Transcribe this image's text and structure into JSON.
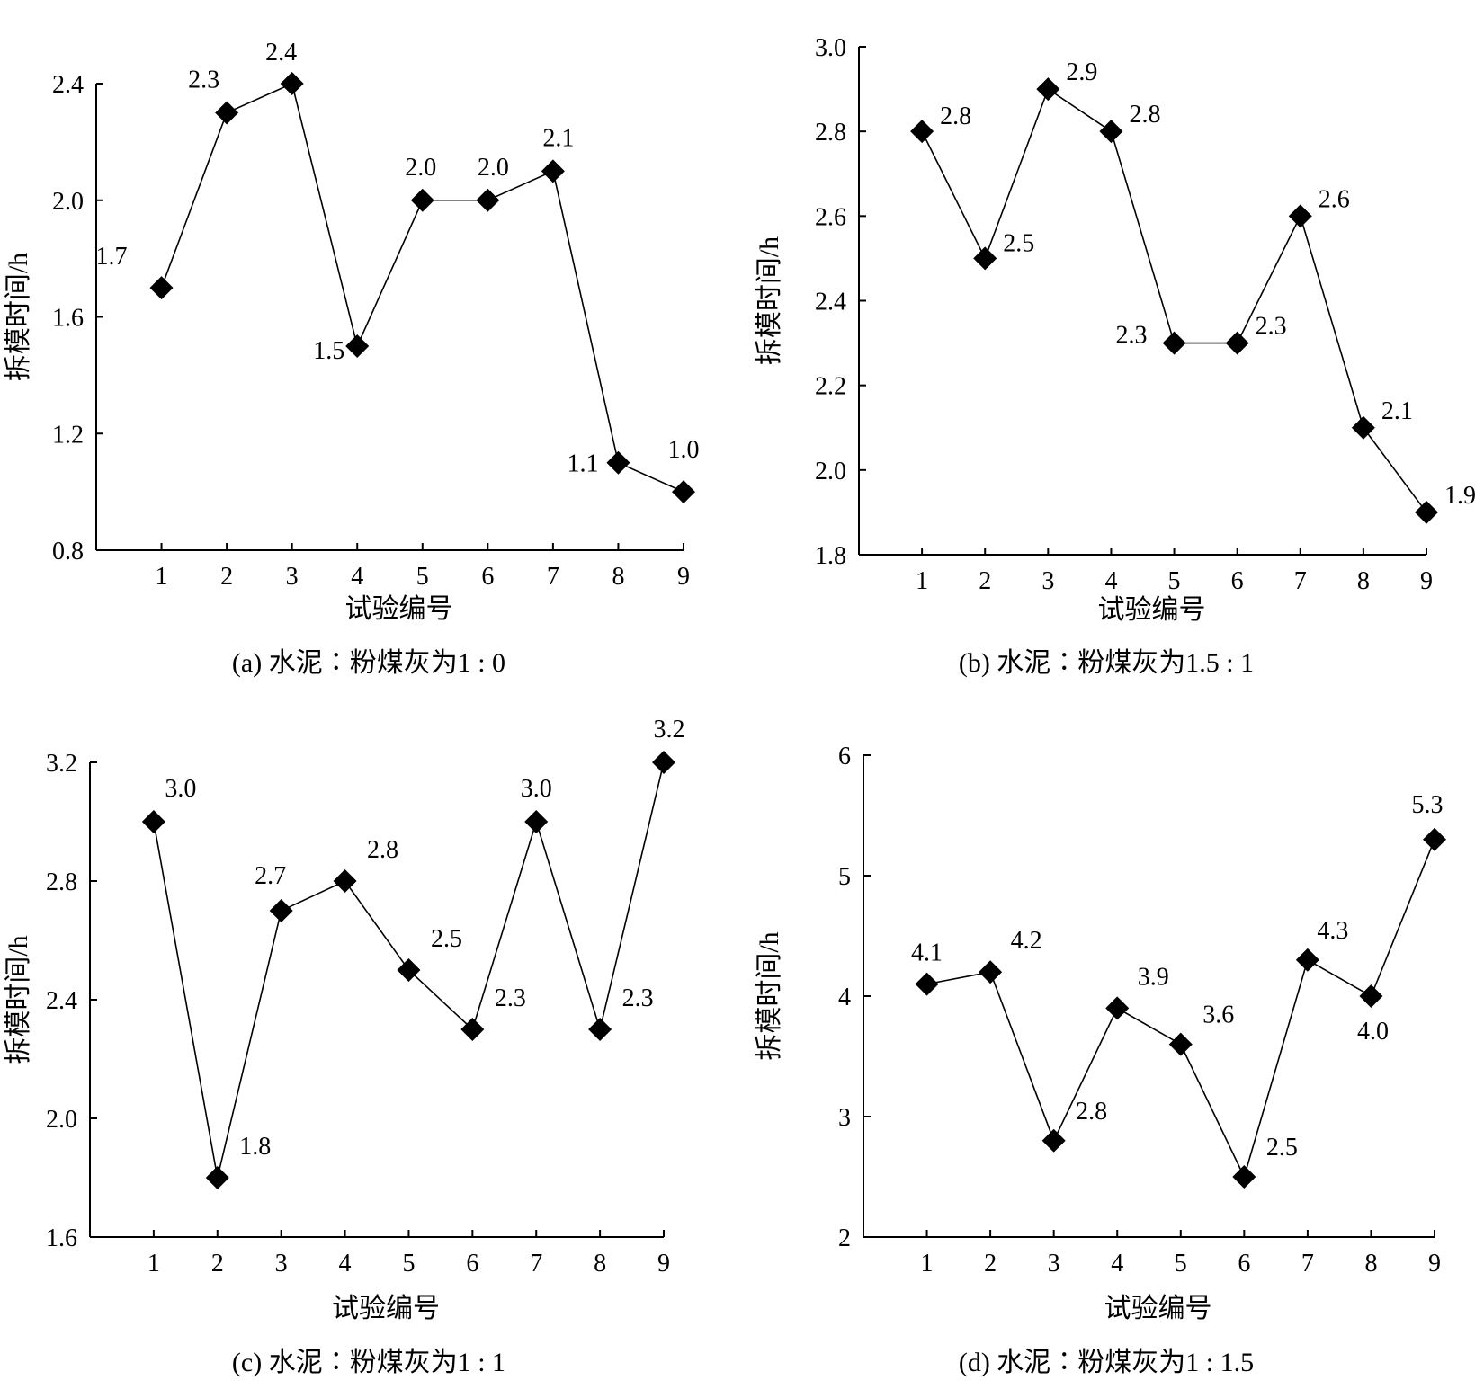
{
  "chart_data": [
    {
      "type": "line",
      "caption": "(a) 水泥∶粉煤灰为1 : 0",
      "xlabel": "试验编号",
      "ylabel": "拆模时间/h",
      "x": [
        1,
        2,
        3,
        4,
        5,
        6,
        7,
        8,
        9
      ],
      "values": [
        1.7,
        2.3,
        2.4,
        1.5,
        2.0,
        2.0,
        2.1,
        1.1,
        1.0
      ],
      "value_labels": [
        "1.7",
        "2.3",
        "2.4",
        "1.5",
        "2.0",
        "2.0",
        "2.1",
        "1.1",
        "1.0"
      ],
      "y_ticks": [
        "0.8",
        "1.2",
        "1.6",
        "2.0",
        "2.4"
      ],
      "ylim": [
        0.8,
        2.4
      ],
      "xlim": [
        0,
        9
      ],
      "marker": "diamond",
      "grid": false
    },
    {
      "type": "line",
      "caption": "(b) 水泥∶粉煤灰为1.5 : 1",
      "xlabel": "试验编号",
      "ylabel": "拆模时间/h",
      "x": [
        1,
        2,
        3,
        4,
        5,
        6,
        7,
        8,
        9
      ],
      "values": [
        2.8,
        2.5,
        2.9,
        2.8,
        2.3,
        2.3,
        2.6,
        2.1,
        1.9
      ],
      "value_labels": [
        "2.8",
        "2.5",
        "2.9",
        "2.8",
        "2.3",
        "2.3",
        "2.6",
        "2.1",
        "1.9"
      ],
      "y_ticks": [
        "1.8",
        "2.0",
        "2.2",
        "2.4",
        "2.6",
        "2.8",
        "3.0"
      ],
      "ylim": [
        1.8,
        3.0
      ],
      "xlim": [
        0,
        9
      ],
      "marker": "diamond",
      "grid": false
    },
    {
      "type": "line",
      "caption": "(c) 水泥∶粉煤灰为1 : 1",
      "xlabel": "试验编号",
      "ylabel": "拆模时间/h",
      "x": [
        1,
        2,
        3,
        4,
        5,
        6,
        7,
        8,
        9
      ],
      "values": [
        3.0,
        1.8,
        2.7,
        2.8,
        2.5,
        2.3,
        3.0,
        2.3,
        3.2
      ],
      "value_labels": [
        "3.0",
        "1.8",
        "2.7",
        "2.8",
        "2.5",
        "2.3",
        "3.0",
        "2.3",
        "3.2"
      ],
      "y_ticks": [
        "1.6",
        "2.0",
        "2.4",
        "2.8",
        "3.2"
      ],
      "ylim": [
        1.6,
        3.2
      ],
      "xlim": [
        0,
        9
      ],
      "marker": "diamond",
      "grid": false
    },
    {
      "type": "line",
      "caption": "(d) 水泥∶粉煤灰为1 : 1.5",
      "xlabel": "试验编号",
      "ylabel": "拆模时间/h",
      "x": [
        1,
        2,
        3,
        4,
        5,
        6,
        7,
        8,
        9
      ],
      "values": [
        4.1,
        4.2,
        2.8,
        3.9,
        3.6,
        2.5,
        4.3,
        4.0,
        5.3
      ],
      "value_labels": [
        "4.1",
        "4.2",
        "2.8",
        "3.9",
        "3.6",
        "2.5",
        "4.3",
        "4.0",
        "5.3"
      ],
      "y_ticks": [
        "2",
        "3",
        "4",
        "5",
        "6"
      ],
      "ylim": [
        2,
        6
      ],
      "xlim": [
        0,
        9
      ],
      "marker": "diamond",
      "grid": false
    }
  ]
}
